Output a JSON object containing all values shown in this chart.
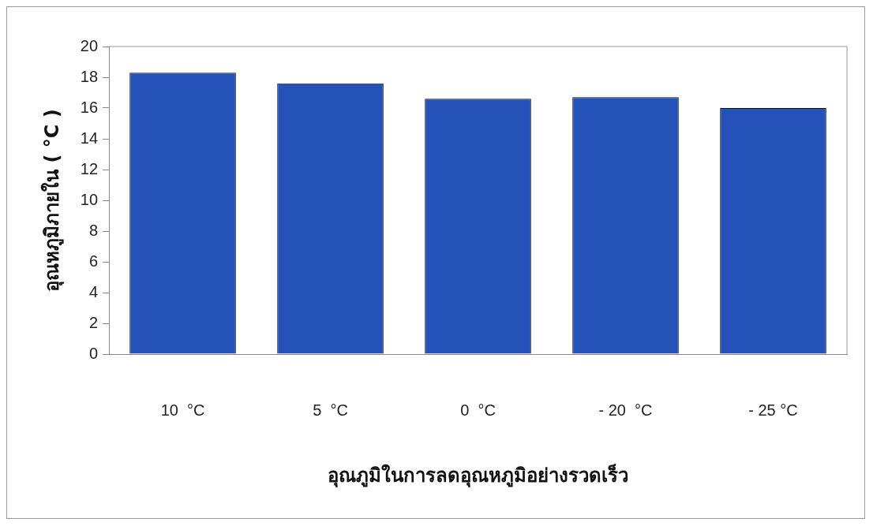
{
  "chart_data": {
    "type": "bar",
    "xlabel": "อุณภูมิในการลดอุณหภูมิอย่างรวดเร็ว",
    "ylabel": "อุณหภูมิภายใน ( °C )",
    "categories": [
      "10  °C",
      "5  °C",
      "0  °C",
      "- 20  °C",
      "- 25 °C"
    ],
    "values": [
      18.3,
      17.6,
      16.6,
      16.7,
      16.0
    ],
    "color": "#2452b8",
    "ylim": [
      0,
      20
    ],
    "yticks": [
      0,
      2,
      4,
      6,
      8,
      10,
      12,
      14,
      16,
      18,
      20
    ],
    "grid": false,
    "legend": false
  }
}
